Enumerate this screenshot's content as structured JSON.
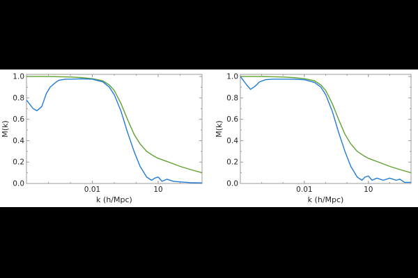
{
  "chart_data": [
    {
      "type": "line",
      "title": "",
      "xlabel": "k  (h/Mpc)",
      "ylabel": "M(k)",
      "xscale": "log",
      "xlim": [
        1e-05,
        1000
      ],
      "ylim": [
        0,
        1.02
      ],
      "xticks": [
        {
          "value": 0.01,
          "label": "0.01"
        },
        {
          "value": 10,
          "label": "10"
        }
      ],
      "yticks": [
        {
          "value": 0.0,
          "label": "0.0"
        },
        {
          "value": 0.2,
          "label": "0.2"
        },
        {
          "value": 0.4,
          "label": "0.4"
        },
        {
          "value": 0.6,
          "label": "0.6"
        },
        {
          "value": 0.8,
          "label": "0.8"
        },
        {
          "value": 1.0,
          "label": "1.0"
        }
      ],
      "grid": false,
      "legend": "none",
      "series": [
        {
          "color": "#1f7ad8",
          "x": [
            1e-05,
            2e-05,
            3e-05,
            5e-05,
            8e-05,
            0.00012,
            0.0002,
            0.0003,
            0.0006,
            0.001,
            0.003,
            0.01,
            0.03,
            0.06,
            0.1,
            0.2,
            0.4,
            0.8,
            1.5,
            3,
            5,
            7,
            10,
            15,
            25,
            50,
            100,
            300,
            1000
          ],
          "y": [
            0.78,
            0.7,
            0.68,
            0.72,
            0.84,
            0.9,
            0.94,
            0.965,
            0.975,
            0.975,
            0.978,
            0.975,
            0.95,
            0.9,
            0.83,
            0.68,
            0.48,
            0.3,
            0.16,
            0.06,
            0.03,
            0.05,
            0.06,
            0.02,
            0.04,
            0.02,
            0.015,
            0.008,
            0.005
          ]
        },
        {
          "color": "#5fa032",
          "x": [
            1e-05,
            0.0001,
            0.001,
            0.003,
            0.01,
            0.03,
            0.06,
            0.1,
            0.2,
            0.4,
            0.8,
            1.5,
            3,
            6,
            10,
            30,
            100,
            300,
            1000
          ],
          "y": [
            1.0,
            1.0,
            0.995,
            0.99,
            0.98,
            0.96,
            0.92,
            0.87,
            0.75,
            0.6,
            0.46,
            0.37,
            0.3,
            0.26,
            0.235,
            0.2,
            0.16,
            0.13,
            0.1
          ]
        }
      ]
    },
    {
      "type": "line",
      "title": "",
      "xlabel": "k  (h/Mpc)",
      "ylabel": "M(k)",
      "xscale": "log",
      "xlim": [
        1e-05,
        1000
      ],
      "ylim": [
        0,
        1.02
      ],
      "xticks": [
        {
          "value": 0.01,
          "label": "0.01"
        },
        {
          "value": 10,
          "label": "10"
        }
      ],
      "yticks": [
        {
          "value": 0.0,
          "label": "0.0"
        },
        {
          "value": 0.2,
          "label": "0.2"
        },
        {
          "value": 0.4,
          "label": "0.4"
        },
        {
          "value": 0.6,
          "label": "0.6"
        },
        {
          "value": 0.8,
          "label": "0.8"
        },
        {
          "value": 1.0,
          "label": "1.0"
        }
      ],
      "grid": false,
      "legend": "none",
      "series": [
        {
          "color": "#1f7ad8",
          "x": [
            1e-05,
            2e-05,
            3e-05,
            5e-05,
            8e-05,
            0.00015,
            0.0003,
            0.001,
            0.003,
            0.01,
            0.03,
            0.06,
            0.1,
            0.2,
            0.4,
            0.8,
            1.5,
            3,
            5,
            7,
            10,
            15,
            25,
            50,
            100,
            200,
            300,
            500,
            1000
          ],
          "y": [
            1.0,
            0.92,
            0.88,
            0.91,
            0.95,
            0.97,
            0.975,
            0.975,
            0.975,
            0.97,
            0.945,
            0.9,
            0.83,
            0.68,
            0.48,
            0.3,
            0.16,
            0.06,
            0.03,
            0.06,
            0.07,
            0.03,
            0.05,
            0.03,
            0.05,
            0.03,
            0.04,
            0.01,
            0.01
          ]
        },
        {
          "color": "#5fa032",
          "x": [
            1e-05,
            0.0001,
            0.001,
            0.003,
            0.01,
            0.03,
            0.06,
            0.1,
            0.2,
            0.4,
            0.8,
            1.5,
            3,
            6,
            10,
            30,
            100,
            300,
            1000
          ],
          "y": [
            1.0,
            1.0,
            0.995,
            0.99,
            0.98,
            0.96,
            0.92,
            0.87,
            0.75,
            0.6,
            0.46,
            0.37,
            0.3,
            0.26,
            0.235,
            0.2,
            0.16,
            0.13,
            0.1
          ]
        }
      ]
    }
  ]
}
